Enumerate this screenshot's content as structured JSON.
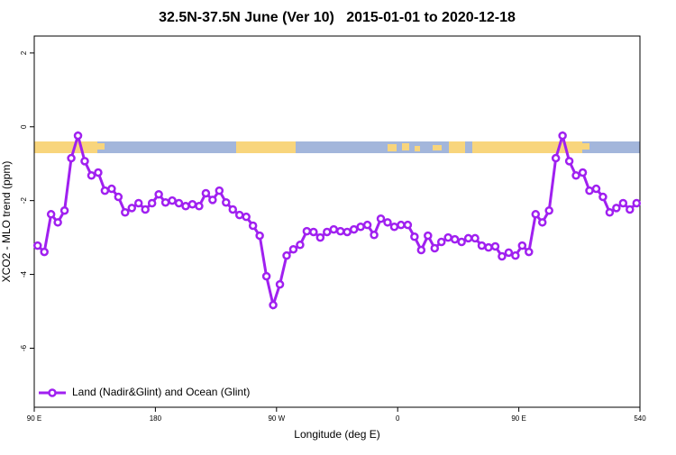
{
  "chart_data": {
    "type": "line",
    "title": "32.5N-37.5N June (Ver 10)   2015-01-01 to 2020-12-18",
    "x_label": "Longitude (deg E)",
    "y_label": "XCO2 - MLO trend (ppm)",
    "x": [
      92.5,
      97.5,
      102.5,
      107.5,
      112.5,
      117.5,
      122.5,
      127.5,
      132.5,
      137.5,
      142.5,
      147.5,
      152.5,
      157.5,
      162.5,
      167.5,
      172.5,
      177.5,
      182.5,
      187.5,
      192.5,
      197.5,
      202.5,
      207.5,
      212.5,
      217.5,
      222.5,
      227.5,
      232.5,
      237.5,
      242.5,
      247.5,
      252.5,
      257.5,
      262.5,
      267.5,
      272.5,
      277.5,
      282.5,
      287.5,
      292.5,
      297.5,
      302.5,
      307.5,
      312.5,
      317.5,
      322.5,
      327.5,
      332.5,
      337.5,
      342.5,
      347.5,
      352.5,
      357.5,
      362.5,
      367.5,
      372.5,
      377.5,
      382.5,
      387.5,
      392.5,
      397.5,
      402.5,
      407.5,
      412.5,
      417.5,
      422.5,
      427.5,
      432.5,
      437.5,
      442.5,
      447.5,
      452.5,
      457.5,
      462.5,
      467.5,
      472.5,
      477.5,
      482.5,
      487.5,
      492.5,
      497.5,
      502.5,
      507.5,
      512.5,
      517.5,
      522.5,
      527.5,
      532.5,
      537.5
    ],
    "series": [
      {
        "name": "Land (Nadir&Glint) and Ocean (Glint)",
        "color": "#a020f0",
        "values": [
          -3.22,
          -3.39,
          -2.37,
          -2.59,
          -2.27,
          -0.85,
          -0.24,
          -0.93,
          -1.32,
          -1.24,
          -1.73,
          -1.68,
          -1.9,
          -2.32,
          -2.2,
          -2.07,
          -2.24,
          -2.07,
          -1.83,
          -2.05,
          -2.0,
          -2.07,
          -2.15,
          -2.1,
          -2.15,
          -1.8,
          -1.98,
          -1.73,
          -2.05,
          -2.24,
          -2.39,
          -2.44,
          -2.68,
          -2.95,
          -4.05,
          -4.83,
          -4.27,
          -3.49,
          -3.32,
          -3.2,
          -2.83,
          -2.85,
          -3.0,
          -2.85,
          -2.78,
          -2.83,
          -2.85,
          -2.78,
          -2.71,
          -2.66,
          -2.93,
          -2.49,
          -2.59,
          -2.71,
          -2.66,
          -2.66,
          -2.98,
          -3.34,
          -2.95,
          -3.29,
          -3.12,
          -3.0,
          -3.05,
          -3.12,
          -3.02,
          -3.02,
          -3.22,
          -3.27,
          -3.24,
          -3.51,
          -3.41,
          -3.49,
          -3.22,
          -3.39,
          -2.37,
          -2.59,
          -2.27,
          -0.85,
          -0.24,
          -0.93,
          -1.32,
          -1.24,
          -1.73,
          -1.68,
          -1.9,
          -2.32,
          -2.2,
          -2.07,
          -2.24,
          -2.07
        ]
      }
    ],
    "xlim": [
      90,
      540
    ],
    "xticks": [
      {
        "value": 90,
        "label": "90 E"
      },
      180,
      {
        "value": 270,
        "label": "90 W"
      },
      {
        "value": 360,
        "label": "0"
      },
      {
        "value": 450,
        "label": "90 E"
      },
      540
    ],
    "ylim": [
      -7.6,
      2.46
    ],
    "yticks": [
      -6,
      -4,
      -2,
      0,
      2
    ],
    "legend": "bottom-left"
  }
}
